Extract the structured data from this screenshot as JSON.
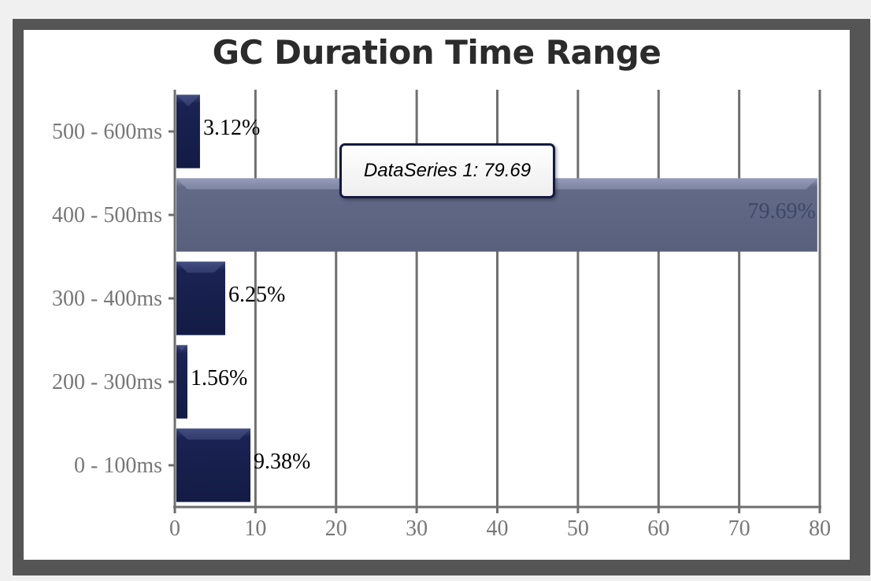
{
  "chart_data": {
    "type": "bar",
    "orientation": "horizontal",
    "title": "GC Duration Time Range",
    "xlabel": "",
    "ylabel": "",
    "categories": [
      "0 - 100ms",
      "200 - 300ms",
      "300 - 400ms",
      "400 - 500ms",
      "500 - 600ms"
    ],
    "series": [
      {
        "values": [
          9.38,
          1.56,
          6.25,
          79.69,
          3.12
        ],
        "data_labels": [
          "9.38%",
          "1.56%",
          "6.25%",
          "79.69%",
          "3.12%"
        ]
      }
    ],
    "xlim": [
      0,
      80
    ],
    "x_ticks": [
      "0",
      "10",
      "20",
      "30",
      "40",
      "50",
      "60",
      "70",
      "80"
    ],
    "grid": true,
    "legend": "none",
    "highlighted_category": "400 - 500ms",
    "colors": {
      "bar": "#131b45",
      "bar_highlight": "#58607e",
      "grid": "#6f6f6f",
      "frame": "#555555"
    }
  },
  "tooltip": {
    "text": "DataSeries 1: 79.69"
  }
}
